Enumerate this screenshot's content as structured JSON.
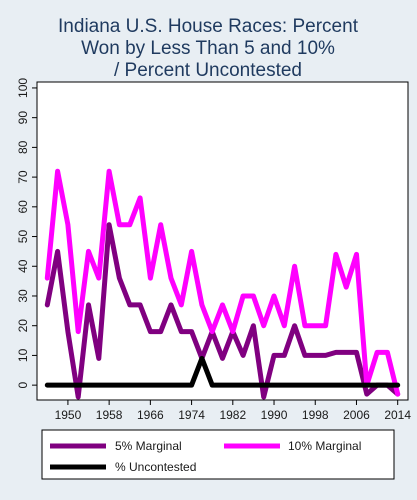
{
  "chart_data": {
    "type": "line",
    "title_lines": [
      "Indiana U.S. House Races: Percent",
      "Won by Less Than 5 and 10%",
      "/ Percent Uncontested"
    ],
    "xlabel": "",
    "ylabel": "",
    "xlim": [
      1944,
      2016
    ],
    "ylim": [
      -5,
      102
    ],
    "xticks": [
      1950,
      1958,
      1966,
      1974,
      1982,
      1990,
      1998,
      2006,
      2014
    ],
    "yticks": [
      0,
      10,
      20,
      30,
      40,
      50,
      60,
      70,
      80,
      90,
      100
    ],
    "grid": false,
    "legend_position": "bottom",
    "series": [
      {
        "name": "5% Marginal",
        "color": "#800080",
        "x": [
          1946,
          1948,
          1950,
          1952,
          1954,
          1956,
          1958,
          1960,
          1962,
          1964,
          1966,
          1968,
          1970,
          1972,
          1974,
          1976,
          1978,
          1980,
          1982,
          1984,
          1986,
          1988,
          1990,
          1992,
          1994,
          1996,
          1998,
          2000,
          2002,
          2004,
          2006,
          2008,
          2010,
          2012,
          2014
        ],
        "values": [
          27,
          45,
          18,
          -4,
          27,
          9,
          54,
          36,
          27,
          27,
          18,
          18,
          27,
          18,
          18,
          9,
          18,
          9,
          18,
          10,
          20,
          -4,
          10,
          10,
          20,
          10,
          10,
          10,
          11,
          11,
          11,
          -3,
          0,
          0,
          -3
        ]
      },
      {
        "name": "10% Marginal",
        "color": "#ff00ff",
        "x": [
          1946,
          1948,
          1950,
          1952,
          1954,
          1956,
          1958,
          1960,
          1962,
          1964,
          1966,
          1968,
          1970,
          1972,
          1974,
          1976,
          1978,
          1980,
          1982,
          1984,
          1986,
          1988,
          1990,
          1992,
          1994,
          1996,
          1998,
          2000,
          2002,
          2004,
          2006,
          2008,
          2010,
          2012,
          2014
        ],
        "values": [
          36,
          72,
          54,
          18,
          45,
          36,
          72,
          54,
          54,
          63,
          36,
          54,
          36,
          27,
          45,
          27,
          18,
          27,
          18,
          30,
          30,
          20,
          30,
          20,
          40,
          20,
          20,
          20,
          44,
          33,
          44,
          0,
          11,
          11,
          -3
        ]
      },
      {
        "name": "% Uncontested",
        "color": "#000000",
        "x": [
          1946,
          1948,
          1950,
          1952,
          1954,
          1956,
          1958,
          1960,
          1962,
          1964,
          1966,
          1968,
          1970,
          1972,
          1974,
          1976,
          1978,
          1980,
          1982,
          1984,
          1986,
          1988,
          1990,
          1992,
          1994,
          1996,
          1998,
          2000,
          2002,
          2004,
          2006,
          2008,
          2010,
          2012,
          2014
        ],
        "values": [
          0,
          0,
          0,
          0,
          0,
          0,
          0,
          0,
          0,
          0,
          0,
          0,
          0,
          0,
          0,
          9,
          0,
          0,
          0,
          0,
          0,
          0,
          0,
          0,
          0,
          0,
          0,
          0,
          0,
          0,
          0,
          0,
          0,
          0,
          0
        ]
      }
    ]
  }
}
